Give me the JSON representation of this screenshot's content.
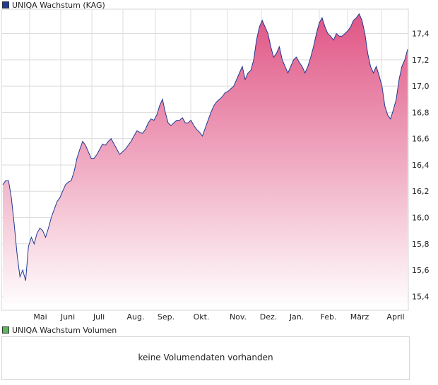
{
  "legend": {
    "price": {
      "label": "UNIQA Wachstum (KAG)",
      "color": "#1f3a93"
    },
    "volume": {
      "label": "UNIQA Wachstum Volumen",
      "color": "#5cb85c"
    }
  },
  "volume_panel": {
    "message": "keine Volumendaten vorhanden"
  },
  "colors": {
    "line": "#1f3a93",
    "fill_top": "#e05585",
    "fill_bottom": "#ffffff",
    "grid": "#dcdcdc"
  },
  "chart_data": {
    "type": "area",
    "title": "UNIQA Wachstum (KAG)",
    "x_labels": [
      "Mai",
      "Juni",
      "Juli",
      "Aug.",
      "Sep.",
      "Okt.",
      "Nov.",
      "Dez.",
      "Jan.",
      "Feb.",
      "März",
      "April"
    ],
    "y_ticks": [
      "15,4",
      "15,6",
      "15,8",
      "16,0",
      "16,2",
      "16,4",
      "16,6",
      "16,8",
      "17,0",
      "17,2",
      "17,4"
    ],
    "ylim": [
      15.3,
      17.58
    ],
    "grid": true,
    "legend_position": "top-left",
    "series": [
      {
        "name": "UNIQA Wachstum (KAG)",
        "values": [
          16.25,
          16.28,
          16.28,
          16.15,
          15.95,
          15.72,
          15.55,
          15.6,
          15.52,
          15.78,
          15.85,
          15.8,
          15.88,
          15.92,
          15.9,
          15.85,
          15.92,
          16.0,
          16.06,
          16.12,
          16.15,
          16.2,
          16.25,
          16.27,
          16.28,
          16.35,
          16.45,
          16.52,
          16.58,
          16.55,
          16.5,
          16.45,
          16.45,
          16.48,
          16.52,
          16.56,
          16.55,
          16.58,
          16.6,
          16.56,
          16.52,
          16.48,
          16.5,
          16.52,
          16.55,
          16.58,
          16.62,
          16.66,
          16.65,
          16.64,
          16.67,
          16.72,
          16.75,
          16.74,
          16.78,
          16.85,
          16.9,
          16.8,
          16.72,
          16.7,
          16.72,
          16.74,
          16.74,
          16.76,
          16.72,
          16.72,
          16.74,
          16.7,
          16.67,
          16.65,
          16.62,
          16.68,
          16.74,
          16.8,
          16.85,
          16.88,
          16.9,
          16.92,
          16.95,
          16.96,
          16.98,
          17.0,
          17.05,
          17.1,
          17.15,
          17.05,
          17.1,
          17.12,
          17.2,
          17.35,
          17.45,
          17.5,
          17.45,
          17.4,
          17.3,
          17.22,
          17.25,
          17.3,
          17.2,
          17.15,
          17.1,
          17.15,
          17.2,
          17.22,
          17.18,
          17.15,
          17.1,
          17.15,
          17.22,
          17.3,
          17.4,
          17.48,
          17.52,
          17.45,
          17.4,
          17.38,
          17.35,
          17.4,
          17.38,
          17.38,
          17.4,
          17.42,
          17.45,
          17.5,
          17.52,
          17.55,
          17.5,
          17.4,
          17.25,
          17.15,
          17.1,
          17.15,
          17.08,
          17.0,
          16.85,
          16.78,
          16.75,
          16.82,
          16.9,
          17.05,
          17.15,
          17.2,
          17.28
        ]
      }
    ]
  }
}
